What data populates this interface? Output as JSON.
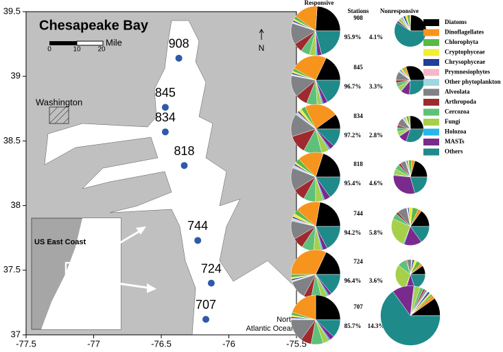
{
  "chart_data": [
    {
      "type": "scatter",
      "title": "Chesapeake Bay",
      "x": [
        -76.37,
        -76.47,
        -76.47,
        -76.33,
        -76.23,
        -76.13,
        -76.17
      ],
      "y": [
        39.14,
        38.76,
        38.57,
        38.31,
        37.73,
        37.4,
        37.12
      ],
      "labels": [
        "908",
        "845",
        "834",
        "818",
        "744",
        "724",
        "707"
      ],
      "color": "#2f5aa8",
      "xlim": [
        -77.5,
        -75.5
      ],
      "ylim": [
        37,
        39.5
      ],
      "xticks": [
        -77.5,
        -77,
        -76.5,
        -76,
        -75.5
      ],
      "yticks": [
        37,
        37.5,
        38,
        38.5,
        39,
        39.5
      ],
      "annotations": {
        "city": "Washington",
        "inset": "US East Coast",
        "ocean_1": "North",
        "ocean_2": "Atlantic Ocean",
        "north": "N"
      },
      "scale_bar": {
        "labels": [
          "0",
          "10",
          "20"
        ],
        "unit": "Mile"
      }
    },
    {
      "type": "pie",
      "headers": {
        "responsive": "Responsive",
        "stations": "Stations",
        "nonresponsive": "Nonresponsive"
      },
      "categories": [
        "Diatoms",
        "Dinoflagellates",
        "Chlorophyta",
        "Cryptophyceae",
        "Chrysophyceae",
        "Prymnesiophytes",
        "Other phytoplankton",
        "Alveolata",
        "Arthropoda",
        "Cercozoa",
        "Fungi",
        "Holozoa",
        "MASTs",
        "Others"
      ],
      "colors": [
        "#000000",
        "#f7941d",
        "#5ab947",
        "#f2ec3a",
        "#1f3f99",
        "#f7b6c8",
        "#9fd6e0",
        "#808285",
        "#9e2a2f",
        "#5fc07a",
        "#a6cf4a",
        "#29b6e8",
        "#7a2a8c",
        "#1f8a8a"
      ],
      "stations": [
        {
          "name": "908",
          "responsive_percent": 95.9,
          "responsive_percent_label": "95.9%",
          "nonresponsive_percent": 4.1,
          "nonresponsive_percent_label": "4.1%",
          "responsive": [
            24,
            16,
            2,
            1,
            1,
            0.5,
            0.5,
            14,
            6,
            6,
            4,
            1,
            3,
            21
          ],
          "nonresponsive": [
            25,
            1,
            3,
            2,
            2,
            0.5,
            0.5,
            1,
            0.5,
            1,
            3,
            0.5,
            2,
            60
          ]
        },
        {
          "name": "845",
          "responsive_percent": 96.7,
          "responsive_percent_label": "96.7%",
          "nonresponsive_percent": 3.3,
          "nonresponsive_percent_label": "3.3%",
          "responsive": [
            18,
            24,
            2,
            1,
            1,
            0.5,
            0.5,
            14,
            8,
            7,
            3,
            1,
            3,
            17
          ],
          "nonresponsive": [
            30,
            3,
            2,
            2,
            1,
            1,
            1,
            10,
            3,
            5,
            5,
            1,
            10,
            26
          ]
        },
        {
          "name": "834",
          "responsive_percent": 97.2,
          "responsive_percent_label": "97.2%",
          "nonresponsive_percent": 2.8,
          "nonresponsive_percent_label": "2.8%",
          "responsive": [
            10,
            22,
            3,
            2,
            1,
            1,
            1,
            15,
            12,
            12,
            5,
            1,
            3,
            12
          ],
          "nonresponsive": [
            25,
            2,
            3,
            2,
            1,
            1,
            1,
            10,
            3,
            5,
            5,
            1,
            10,
            30
          ]
        },
        {
          "name": "818",
          "responsive_percent": 95.4,
          "responsive_percent_label": "95.4%",
          "nonresponsive_percent": 4.6,
          "nonresponsive_percent_label": "4.6%",
          "responsive": [
            20,
            17,
            3,
            1,
            1,
            1,
            1,
            15,
            8,
            8,
            5,
            1,
            4,
            15
          ],
          "nonresponsive": [
            20,
            3,
            3,
            1,
            1,
            0.5,
            0.5,
            5,
            2,
            5,
            5,
            1,
            30,
            20
          ]
        },
        {
          "name": "744",
          "responsive_percent": 94.2,
          "responsive_percent_label": "94.2%",
          "nonresponsive_percent": 5.8,
          "nonresponsive_percent_label": "5.8%",
          "responsive": [
            22,
            16,
            3,
            2,
            1,
            1,
            1,
            12,
            7,
            8,
            5,
            1,
            3,
            17
          ],
          "nonresponsive": [
            15,
            3,
            5,
            3,
            1,
            0.5,
            0.5,
            8,
            2,
            5,
            25,
            1,
            15,
            15
          ]
        },
        {
          "name": "724",
          "responsive_percent": 96.4,
          "responsive_percent_label": "96.4%",
          "nonresponsive_percent": 3.6,
          "nonresponsive_percent_label": "3.6%",
          "responsive": [
            18,
            32,
            2,
            1,
            1,
            0.5,
            0.5,
            12,
            5,
            7,
            4,
            1,
            2,
            14
          ],
          "nonresponsive": [
            10,
            3,
            5,
            3,
            2,
            0.5,
            0.5,
            5,
            1,
            10,
            30,
            1,
            10,
            20
          ]
        },
        {
          "name": "707",
          "responsive_percent": 85.7,
          "responsive_percent_label": "85.7%",
          "nonresponsive_percent": 14.3,
          "nonresponsive_percent_label": "14.3%",
          "responsive": [
            25,
            20,
            2,
            1,
            1,
            0.5,
            0.5,
            15,
            7,
            8,
            4,
            1,
            3,
            12
          ],
          "nonresponsive": [
            10,
            2,
            1,
            1,
            1,
            0.5,
            0.5,
            1,
            1,
            2,
            3,
            0.5,
            12,
            66
          ]
        }
      ]
    }
  ]
}
